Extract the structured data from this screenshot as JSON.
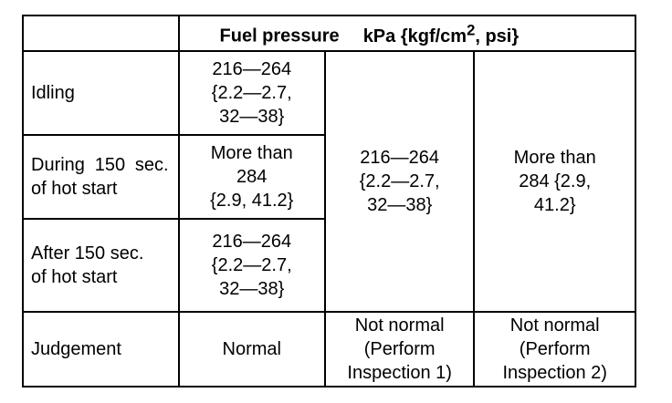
{
  "table": {
    "header": {
      "title": "Fuel pressure",
      "unit_prefix": "kPa {kgf/cm",
      "unit_sup": "2",
      "unit_suffix": ", psi}"
    },
    "rows": [
      {
        "label": "Idling",
        "value": "216—264\n{2.2—2.7,\n32—38}"
      },
      {
        "label": "During 150 sec. of hot start",
        "value": "More than\n284\n{2.9, 41.2}"
      },
      {
        "label": "After 150 sec.\nof hot start",
        "value": "216—264\n{2.2—2.7,\n32—38}"
      }
    ],
    "col2_value": "216—264\n{2.2—2.7,\n32—38}",
    "col3_value": "More than\n284 {2.9,\n41.2}",
    "judgement": {
      "label": "Judgement",
      "col1": "Normal",
      "col2": "Not normal\n(Perform\nInspection 1)",
      "col3": "Not normal\n(Perform\nInspection 2)"
    }
  }
}
